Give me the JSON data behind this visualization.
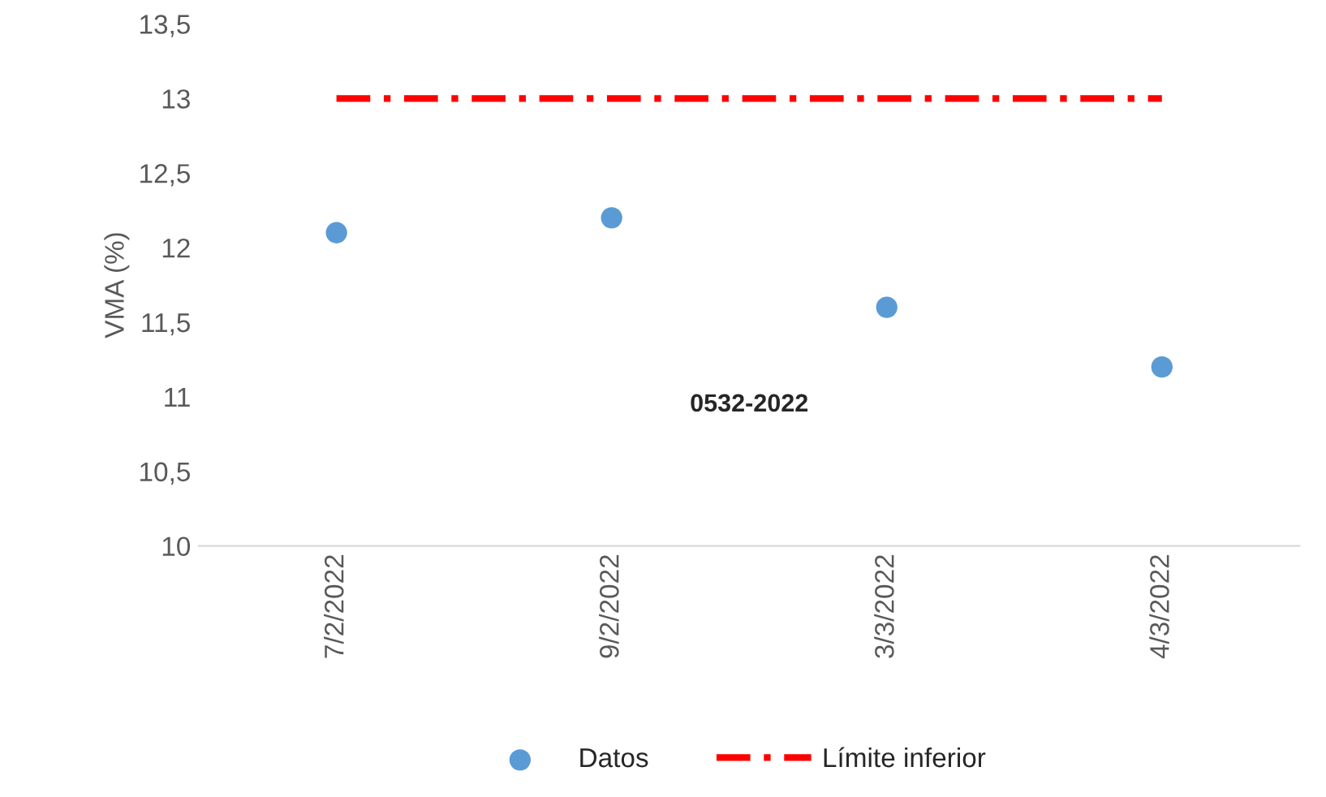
{
  "chart_data": {
    "type": "scatter",
    "ylabel": "VMA (%)",
    "categories": [
      "7/2/2022",
      "9/2/2022",
      "3/3/2022",
      "4/3/2022"
    ],
    "series": [
      {
        "name": "Datos",
        "color": "#5b9bd5",
        "values": [
          12.1,
          12.2,
          11.6,
          11.2
        ],
        "marker": "circle"
      },
      {
        "name": "Límite inferior",
        "type": "line",
        "color": "#ff0000",
        "values": [
          13,
          13,
          13,
          13
        ],
        "line_style": "dashdot",
        "marker": "none"
      }
    ],
    "ylim": [
      10,
      13.5
    ],
    "yticks": [
      {
        "value": 10,
        "label": "10"
      },
      {
        "value": 10.5,
        "label": "10,5"
      },
      {
        "value": 11,
        "label": "11"
      },
      {
        "value": 11.5,
        "label": "11,5"
      },
      {
        "value": 12,
        "label": "12"
      },
      {
        "value": 12.5,
        "label": "12,5"
      },
      {
        "value": 13,
        "label": "13"
      },
      {
        "value": 13.5,
        "label": "13,5"
      }
    ],
    "annotations": [
      "0532-2022"
    ],
    "grid": false,
    "legend": "bottom"
  }
}
